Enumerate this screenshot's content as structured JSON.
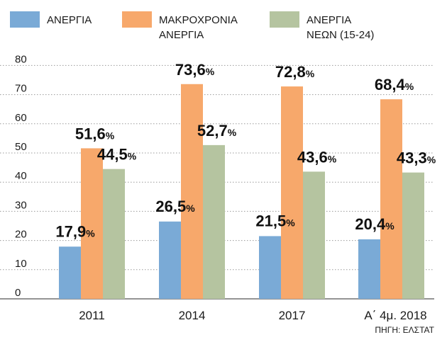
{
  "chart_data": {
    "type": "bar",
    "categories": [
      "2011",
      "2014",
      "2017",
      "Α΄ 4μ. 2018"
    ],
    "series": [
      {
        "name": "ΑΝΕΡΓΙΑ",
        "values": [
          17.9,
          26.5,
          21.5,
          20.4
        ],
        "labels": [
          "17,9%",
          "26,5%",
          "21,5%",
          "20,4%"
        ],
        "color": "#7aaad6"
      },
      {
        "name": "ΜΑΚΡΟΧΡΟΝΙΑ ΑΝΕΡΓΙΑ",
        "legend_lines": [
          "ΜΑΚΡΟΧΡΟΝΙΑ",
          "ΑΝΕΡΓΙΑ"
        ],
        "values": [
          51.6,
          73.6,
          72.8,
          68.4
        ],
        "labels": [
          "51,6%",
          "73,6%",
          "72,8%",
          "68,4%"
        ],
        "color": "#f7a86b"
      },
      {
        "name": "ΑΝΕΡΓΙΑ ΝΕΩΝ (15-24)",
        "legend_lines": [
          "ΑΝΕΡΓΙΑ",
          "ΝΕΩΝ (15-24)"
        ],
        "values": [
          44.5,
          52.7,
          43.6,
          43.3
        ],
        "labels": [
          "44,5%",
          "52,7%",
          "43,6%",
          "43,3%"
        ],
        "color": "#b5c4a0"
      }
    ],
    "ylim": [
      0,
      80
    ],
    "yticks": [
      "0",
      "10",
      "20",
      "30",
      "40",
      "50",
      "60",
      "70",
      "80"
    ],
    "grid": true,
    "legend_position": "top",
    "source": "ΠΗΓΗ: ΕΛΣΤΑΤ"
  },
  "colors": {
    "grid": "#9a9a9a",
    "axis": "#555555"
  }
}
